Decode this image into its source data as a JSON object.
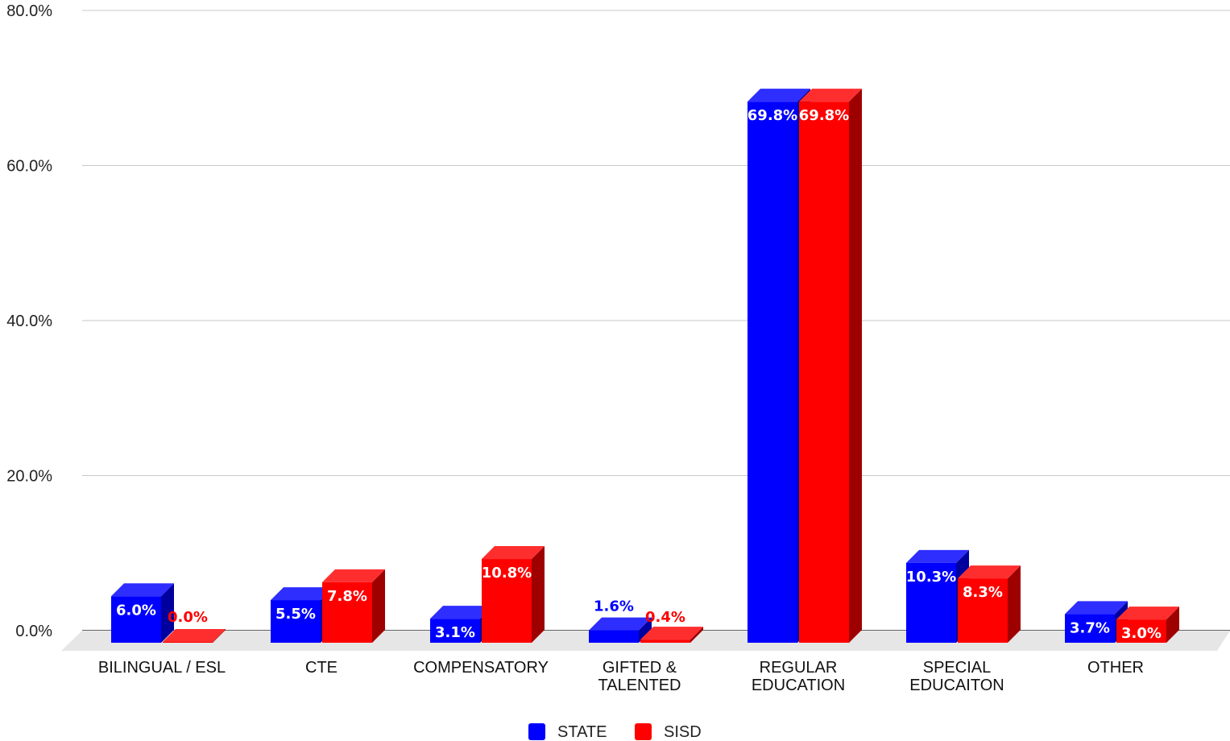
{
  "chart_data": {
    "type": "bar",
    "categories": [
      [
        "BILINGUAL / ESL"
      ],
      [
        "CTE"
      ],
      [
        "COMPENSATORY"
      ],
      [
        "GIFTED &",
        "TALENTED"
      ],
      [
        "REGULAR",
        "EDUCATION"
      ],
      [
        "SPECIAL",
        "EDUCAITON"
      ],
      [
        "OTHER"
      ]
    ],
    "series": [
      {
        "name": "STATE",
        "color": "#0000ff",
        "values": [
          6.0,
          5.5,
          3.1,
          1.6,
          69.8,
          10.3,
          3.7
        ],
        "labels": [
          "6.0%",
          "5.5%",
          "3.1%",
          "1.6%",
          "69.8%",
          "10.3%",
          "3.7%"
        ]
      },
      {
        "name": "SISD",
        "color": "#ff0000",
        "values": [
          0.0,
          7.8,
          10.8,
          0.4,
          69.8,
          8.3,
          3.0
        ],
        "labels": [
          "0.0%",
          "7.8%",
          "10.8%",
          "0.4%",
          "69.8%",
          "8.3%",
          "3.0%"
        ]
      }
    ],
    "y_ticks": [
      "0.0%",
      "20.0%",
      "40.0%",
      "60.0%",
      "80.0%"
    ],
    "ylim": [
      0,
      80
    ],
    "grid": true,
    "legend": "bottom",
    "style": "3d-clustered-bar"
  }
}
